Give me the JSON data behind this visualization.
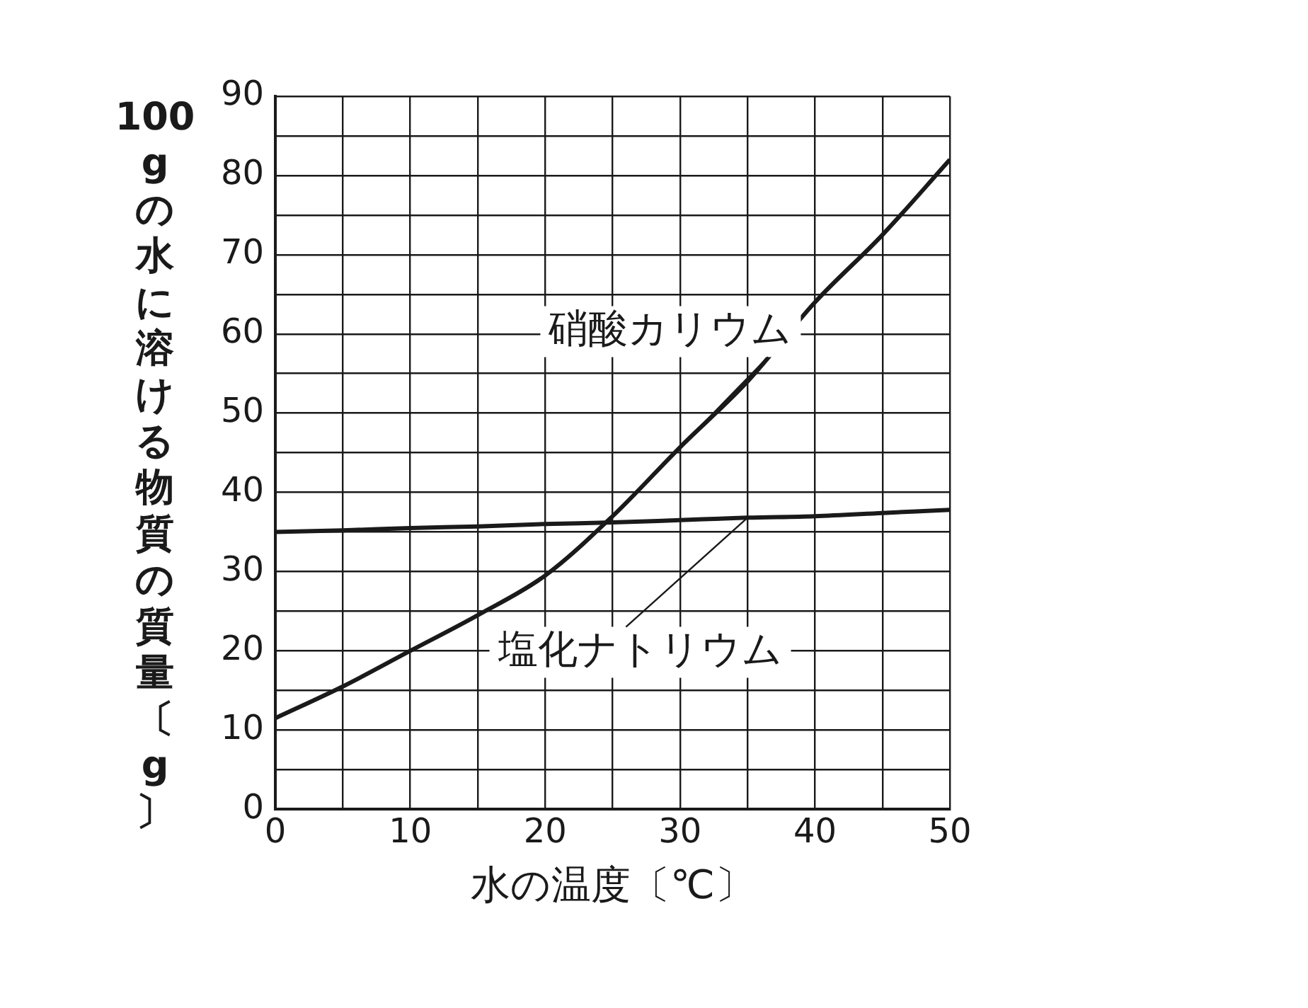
{
  "chart_data": {
    "type": "line",
    "xlabel": "水の温度〔℃〕",
    "ylabel": "100gの水に溶ける物質の質量〔g〕",
    "x": [
      0,
      5,
      10,
      15,
      20,
      25,
      30,
      35,
      40,
      45,
      50
    ],
    "series": [
      {
        "name": "硝酸カリウム",
        "color": "#1a1a1a",
        "values": [
          11.5,
          15.5,
          20,
          24.5,
          29.5,
          37,
          45.7,
          54,
          64,
          72.5,
          82
        ]
      },
      {
        "name": "塩化ナトリウム",
        "color": "#1a1a1a",
        "values": [
          35,
          35.2,
          35.5,
          35.7,
          36,
          36.2,
          36.5,
          36.8,
          37,
          37.4,
          37.8
        ]
      }
    ],
    "xlim": [
      0,
      50
    ],
    "xticks": [
      0,
      {
        "value": 5,
        "label": null
      },
      10,
      {
        "value": 15,
        "label": null
      },
      20,
      {
        "value": 25,
        "label": null
      },
      30,
      {
        "value": 35,
        "label": null
      },
      40,
      {
        "value": 45,
        "label": null
      },
      50
    ],
    "ylim": [
      0,
      90
    ],
    "yticks": [
      0,
      {
        "value": 5,
        "label": null
      },
      10,
      {
        "value": 15,
        "label": null
      },
      20,
      {
        "value": 25,
        "label": null
      },
      30,
      {
        "value": 35,
        "label": null
      },
      40,
      {
        "value": 45,
        "label": null
      },
      50,
      {
        "value": 55,
        "label": null
      },
      60,
      {
        "value": 65,
        "label": null
      },
      70,
      {
        "value": 75,
        "label": null
      },
      80,
      {
        "value": 85,
        "label": null
      },
      90
    ],
    "grid": true,
    "legend": false,
    "marker": "none",
    "line_style": "solid"
  }
}
